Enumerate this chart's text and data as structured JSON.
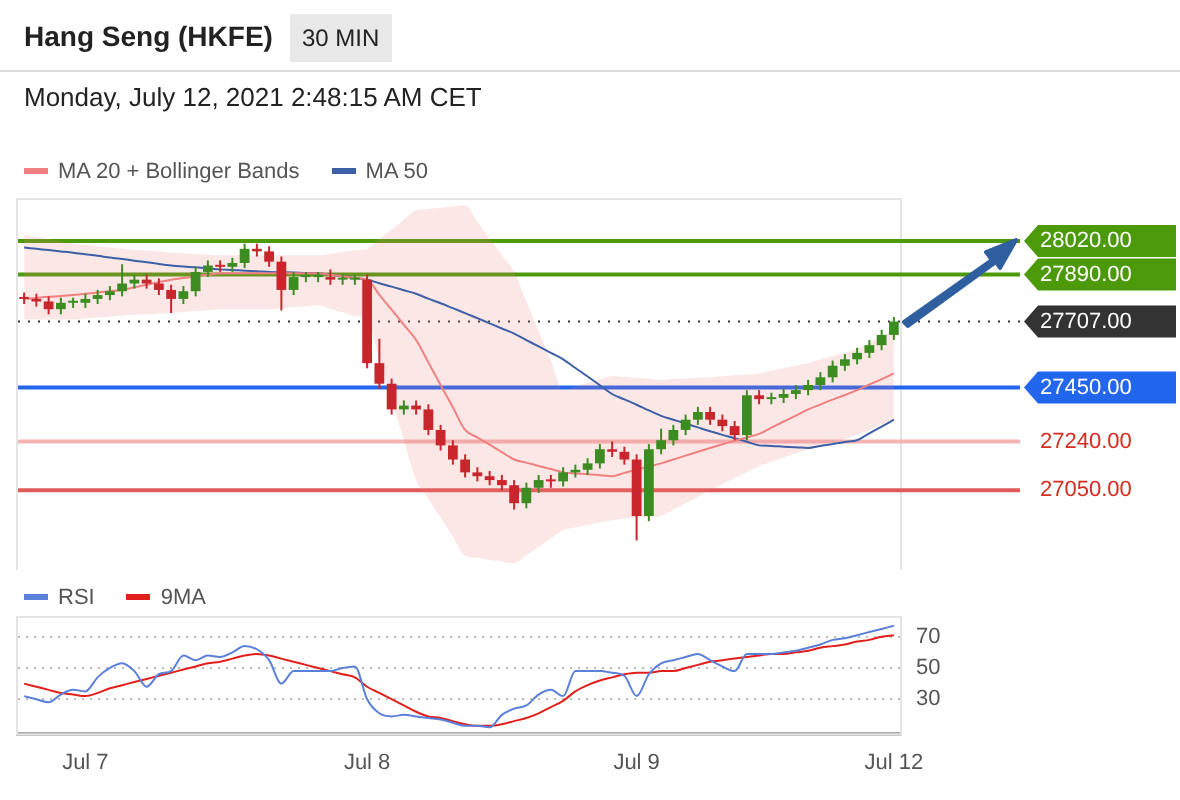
{
  "chart_data": [
    {
      "type": "candlestick",
      "title": "Hang Seng (HKFE)",
      "subtitle": "Monday, July 12, 2021 2:48:15 AM CET",
      "annotations": [
        "30 MIN"
      ],
      "categories": [
        null,
        null,
        null,
        null,
        null,
        null,
        null,
        null,
        null,
        null,
        null,
        null,
        null,
        null,
        null,
        null,
        null,
        null,
        null,
        null,
        null,
        null,
        null,
        null,
        null,
        null,
        null,
        null,
        null,
        null,
        null,
        null,
        null,
        null,
        null,
        null,
        null,
        null,
        null,
        null,
        null,
        null,
        null,
        null,
        null,
        null,
        null,
        null,
        null,
        null,
        null,
        null,
        null,
        null,
        null,
        null,
        null,
        null,
        null,
        null,
        null,
        null,
        null,
        null,
        null,
        null,
        null,
        null,
        null,
        null,
        null,
        null
      ],
      "ohlc": [
        [
          27800,
          27820,
          27775,
          27795
        ],
        [
          27795,
          27815,
          27765,
          27785
        ],
        [
          27785,
          27805,
          27735,
          27755
        ],
        [
          27755,
          27800,
          27735,
          27780
        ],
        [
          27780,
          27800,
          27760,
          27780
        ],
        [
          27780,
          27815,
          27760,
          27795
        ],
        [
          27795,
          27830,
          27775,
          27810
        ],
        [
          27810,
          27845,
          27790,
          27825
        ],
        [
          27825,
          27930,
          27805,
          27855
        ],
        [
          27855,
          27890,
          27835,
          27870
        ],
        [
          27870,
          27890,
          27835,
          27855
        ],
        [
          27855,
          27875,
          27810,
          27830
        ],
        [
          27830,
          27850,
          27740,
          27795
        ],
        [
          27795,
          27845,
          27775,
          27825
        ],
        [
          27825,
          27920,
          27805,
          27900
        ],
        [
          27900,
          27945,
          27880,
          27925
        ],
        [
          27925,
          27945,
          27900,
          27920
        ],
        [
          27920,
          27955,
          27900,
          27935
        ],
        [
          27935,
          28010,
          27915,
          27990
        ],
        [
          27990,
          28010,
          27960,
          27980
        ],
        [
          27980,
          28000,
          27920,
          27940
        ],
        [
          27940,
          27960,
          27750,
          27830
        ],
        [
          27830,
          27900,
          27810,
          27880
        ],
        [
          27880,
          27900,
          27860,
          27880
        ],
        [
          27880,
          27900,
          27860,
          27880
        ],
        [
          27880,
          27910,
          27850,
          27870
        ],
        [
          27870,
          27890,
          27850,
          27870
        ],
        [
          27870,
          27890,
          27850,
          27870
        ],
        [
          27870,
          27890,
          27525,
          27545
        ],
        [
          27545,
          27640,
          27445,
          27465
        ],
        [
          27465,
          27485,
          27345,
          27365
        ],
        [
          27365,
          27400,
          27345,
          27380
        ],
        [
          27380,
          27400,
          27345,
          27365
        ],
        [
          27365,
          27385,
          27265,
          27285
        ],
        [
          27285,
          27305,
          27205,
          27225
        ],
        [
          27225,
          27245,
          27150,
          27170
        ],
        [
          27170,
          27190,
          27100,
          27120
        ],
        [
          27120,
          27140,
          27085,
          27105
        ],
        [
          27105,
          27125,
          27070,
          27090
        ],
        [
          27090,
          27110,
          27050,
          27070
        ],
        [
          27070,
          27090,
          26975,
          27000
        ],
        [
          27000,
          27080,
          26980,
          27060
        ],
        [
          27060,
          27110,
          27040,
          27090
        ],
        [
          27090,
          27110,
          27060,
          27085
        ],
        [
          27085,
          27140,
          27065,
          27120
        ],
        [
          27120,
          27150,
          27100,
          27130
        ],
        [
          27130,
          27175,
          27110,
          27155
        ],
        [
          27155,
          27230,
          27135,
          27210
        ],
        [
          27210,
          27240,
          27180,
          27200
        ],
        [
          27200,
          27220,
          27150,
          27170
        ],
        [
          27170,
          27190,
          26855,
          26950
        ],
        [
          26950,
          27230,
          26930,
          27210
        ],
        [
          27210,
          27290,
          27190,
          27245
        ],
        [
          27245,
          27305,
          27225,
          27285
        ],
        [
          27285,
          27345,
          27265,
          27325
        ],
        [
          27325,
          27375,
          27305,
          27355
        ],
        [
          27355,
          27375,
          27305,
          27325
        ],
        [
          27325,
          27345,
          27280,
          27300
        ],
        [
          27300,
          27320,
          27245,
          27265
        ],
        [
          27265,
          27440,
          27245,
          27420
        ],
        [
          27420,
          27440,
          27385,
          27405
        ],
        [
          27405,
          27430,
          27385,
          27410
        ],
        [
          27410,
          27445,
          27390,
          27425
        ],
        [
          27425,
          27460,
          27405,
          27440
        ],
        [
          27440,
          27480,
          27420,
          27460
        ],
        [
          27460,
          27510,
          27440,
          27490
        ],
        [
          27490,
          27555,
          27470,
          27535
        ],
        [
          27535,
          27580,
          27515,
          27560
        ],
        [
          27560,
          27605,
          27540,
          27585
        ],
        [
          27585,
          27635,
          27565,
          27615
        ],
        [
          27615,
          27675,
          27595,
          27655
        ],
        [
          27655,
          27725,
          27635,
          27707
        ]
      ],
      "colors": [
        "#c8262c",
        "#c8262c",
        "#c8262c",
        "#3c8c22",
        "#3c8c22",
        "#3c8c22",
        "#3c8c22",
        "#3c8c22",
        "#3c8c22",
        "#3c8c22",
        "#c8262c",
        "#c8262c",
        "#c8262c",
        "#3c8c22",
        "#3c8c22",
        "#3c8c22",
        "#c8262c",
        "#3c8c22",
        "#3c8c22",
        "#c8262c",
        "#c8262c",
        "#c8262c",
        "#3c8c22",
        "#3c8c22",
        "#3c8c22",
        "#c8262c",
        "#3c8c22",
        "#3c8c22",
        "#c8262c",
        "#c8262c",
        "#c8262c",
        "#3c8c22",
        "#c8262c",
        "#c8262c",
        "#c8262c",
        "#c8262c",
        "#c8262c",
        "#c8262c",
        "#c8262c",
        "#c8262c",
        "#c8262c",
        "#3c8c22",
        "#3c8c22",
        "#c8262c",
        "#3c8c22",
        "#3c8c22",
        "#3c8c22",
        "#3c8c22",
        "#c8262c",
        "#c8262c",
        "#c8262c",
        "#3c8c22",
        "#3c8c22",
        "#3c8c22",
        "#3c8c22",
        "#3c8c22",
        "#c8262c",
        "#c8262c",
        "#c8262c",
        "#3c8c22",
        "#c8262c",
        "#3c8c22",
        "#3c8c22",
        "#3c8c22",
        "#3c8c22",
        "#3c8c22",
        "#3c8c22",
        "#3c8c22",
        "#3c8c22",
        "#3c8c22",
        "#3c8c22",
        "#3c8c22"
      ],
      "series": [
        {
          "name": "MA 20 + Bollinger Bands",
          "type": "line",
          "color": "#f08080",
          "values": [
            27795,
            27799,
            27803,
            27806,
            27810,
            27815,
            27820,
            27825,
            27830,
            27840,
            27850,
            27860,
            27870,
            27876,
            27883,
            27889,
            27895,
            27895,
            27895,
            27895,
            27895,
            27895,
            27895,
            27895,
            27895,
            27889,
            27883,
            27876,
            27870,
            27811,
            27753,
            27694,
            27635,
            27548,
            27460,
            27373,
            27285,
            27256,
            27228,
            27199,
            27170,
            27158,
            27145,
            27133,
            27120,
            27116,
            27113,
            27109,
            27105,
            27118,
            27130,
            27143,
            27155,
            27170,
            27185,
            27200,
            27215,
            27229,
            27243,
            27256,
            27270,
            27294,
            27318,
            27341,
            27365,
            27384,
            27403,
            27421,
            27440,
            27462,
            27483,
            27505
          ],
          "upper": [
            28045,
            28036,
            28028,
            28019,
            28010,
            28005,
            28000,
            27995,
            27990,
            27986,
            27983,
            27979,
            27975,
            27973,
            27970,
            27968,
            27965,
            27965,
            27965,
            27965,
            27965,
            27965,
            27965,
            27965,
            27965,
            27971,
            27978,
            27984,
            27990,
            28028,
            28065,
            28103,
            28140,
            28145,
            28150,
            28155,
            28160,
            28095,
            28030,
            27965,
            27900,
            27785,
            27670,
            27555,
            27440,
            27454,
            27468,
            27481,
            27495,
            27491,
            27488,
            27484,
            27480,
            27483,
            27485,
            27488,
            27490,
            27494,
            27498,
            27501,
            27505,
            27515,
            27525,
            27535,
            27545,
            27559,
            27573,
            27586,
            27600,
            27625,
            27650,
            27675
          ],
          "lower": [
            27715,
            27715,
            27715,
            27715,
            27715,
            27719,
            27723,
            27726,
            27730,
            27733,
            27735,
            27738,
            27740,
            27744,
            27748,
            27751,
            27755,
            27755,
            27755,
            27755,
            27755,
            27759,
            27763,
            27766,
            27770,
            27756,
            27743,
            27729,
            27715,
            27559,
            27403,
            27246,
            27090,
            27016,
            26943,
            26869,
            26795,
            26788,
            26780,
            26773,
            26765,
            26798,
            26830,
            26863,
            26895,
            26905,
            26915,
            26925,
            26935,
            26939,
            26943,
            26946,
            26950,
            26975,
            27000,
            27025,
            27050,
            27074,
            27098,
            27121,
            27145,
            27161,
            27178,
            27194,
            27210,
            27224,
            27238,
            27251,
            27265,
            27285,
            27305,
            27325
          ]
        },
        {
          "name": "MA 50",
          "type": "line",
          "color": "#3d5fa5",
          "values": [
            27995,
            27990,
            27985,
            27980,
            27975,
            27969,
            27963,
            27956,
            27950,
            27944,
            27938,
            27931,
            27925,
            27921,
            27918,
            27914,
            27910,
            27908,
            27905,
            27903,
            27900,
            27899,
            27898,
            27896,
            27895,
            27889,
            27883,
            27876,
            27870,
            27856,
            27843,
            27829,
            27815,
            27796,
            27778,
            27759,
            27740,
            27720,
            27700,
            27680,
            27660,
            27635,
            27610,
            27585,
            27560,
            27526,
            27493,
            27459,
            27425,
            27404,
            27383,
            27361,
            27340,
            27325,
            27310,
            27295,
            27280,
            27266,
            27253,
            27239,
            27225,
            27223,
            27220,
            27218,
            27215,
            27223,
            27230,
            27238,
            27245,
            27272,
            27298,
            27325
          ]
        }
      ],
      "ylim": [
        26740,
        28180
      ],
      "tick_labels": false,
      "legend": "top left",
      "ref_lines": [
        {
          "axis": "y",
          "value": 28020,
          "label": "28020.00",
          "color": "#4c9a0a"
        },
        {
          "axis": "y",
          "value": 27890,
          "label": "27890.00",
          "color": "#4c9a0a"
        },
        {
          "axis": "y",
          "value": 27707,
          "label": "27707.00",
          "color": "#333333",
          "line_style": "dotted"
        },
        {
          "axis": "y",
          "value": 27450,
          "label": "27450.00",
          "color": "#2266ee"
        },
        {
          "axis": "y",
          "value": 27240,
          "label": "27240.00",
          "color": "#f4b4b4"
        },
        {
          "axis": "y",
          "value": 27050,
          "label": "27050.00",
          "color": "#e05a5a"
        }
      ]
    },
    {
      "type": "line",
      "categories": [
        null,
        null,
        null,
        null,
        null,
        "Jul 7",
        null,
        null,
        null,
        null,
        null,
        null,
        null,
        null,
        null,
        null,
        null,
        null,
        null,
        null,
        null,
        null,
        null,
        null,
        null,
        null,
        null,
        null,
        "Jul 8",
        null,
        null,
        null,
        null,
        null,
        null,
        null,
        null,
        null,
        null,
        null,
        null,
        null,
        null,
        null,
        null,
        null,
        null,
        null,
        null,
        null,
        "Jul 9",
        null,
        null,
        null,
        null,
        null,
        null,
        null,
        null,
        null,
        null,
        null,
        null,
        null,
        null,
        null,
        null,
        null,
        null,
        null,
        null,
        "Jul 12"
      ],
      "series": [
        {
          "name": "RSI",
          "color": "#5b80d9",
          "values": [
            32,
            30,
            28,
            33,
            36,
            35,
            44,
            50,
            53,
            48,
            38,
            46,
            48,
            58,
            55,
            58,
            57,
            60,
            64,
            62,
            55,
            40,
            48,
            48,
            48,
            48,
            50,
            51,
            30,
            21,
            19,
            20,
            19,
            18,
            17,
            15,
            13,
            13,
            12,
            20,
            24,
            26,
            33,
            36,
            32,
            48,
            48,
            48,
            47,
            45,
            32,
            46,
            53,
            55,
            57,
            59,
            55,
            51,
            48,
            59,
            59,
            59,
            60,
            61,
            63,
            65,
            68,
            69,
            71,
            73,
            75,
            77
          ]
        },
        {
          "name": "9MA",
          "color": "#e0201c",
          "values": [
            40,
            38,
            36,
            34,
            33,
            32,
            34,
            37,
            39,
            41,
            43,
            45,
            47,
            49,
            51,
            53,
            54,
            56,
            58,
            59,
            58,
            56,
            54,
            52,
            50,
            48,
            46,
            44,
            38,
            34,
            30,
            26,
            22,
            19,
            18,
            16,
            14,
            13,
            13,
            14,
            16,
            18,
            21,
            25,
            29,
            35,
            39,
            42,
            44,
            46,
            47,
            47,
            48,
            48,
            50,
            52,
            54,
            55,
            56,
            57,
            58,
            59,
            59,
            60,
            61,
            63,
            64,
            65,
            67,
            68,
            70,
            71
          ]
        }
      ],
      "ylim": [
        8,
        82
      ],
      "yticks": [
        70,
        50,
        30
      ],
      "grid": "y",
      "legend": "top left"
    }
  ]
}
